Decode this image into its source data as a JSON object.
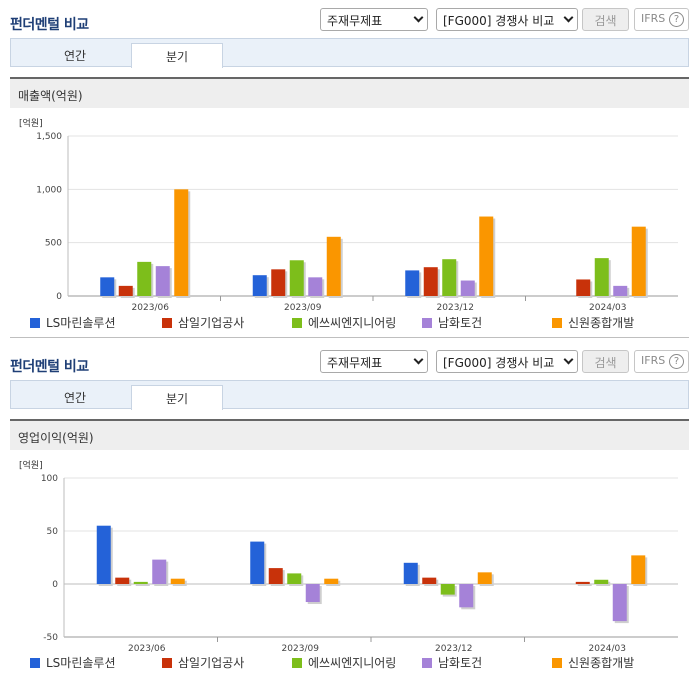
{
  "panels": [
    {
      "title": "펀더멘털 비교",
      "select1": "주재무제표",
      "select2": "[FG000] 경쟁사 비교",
      "search_label": "검색",
      "ifrs_label": "IFRS",
      "help_label": "?",
      "tabs": [
        {
          "label": "연간"
        },
        {
          "label": "분기"
        }
      ],
      "section_title": "매출액(억원)"
    },
    {
      "title": "펀더멘털 비교",
      "select1": "주재무제표",
      "select2": "[FG000] 경쟁사 비교",
      "search_label": "검색",
      "ifrs_label": "IFRS",
      "help_label": "?",
      "tabs": [
        {
          "label": "연간"
        },
        {
          "label": "분기"
        }
      ],
      "section_title": "영업이익(억원)"
    }
  ],
  "legend": [
    {
      "name": "LS마린솔루션",
      "color": "#2462d8"
    },
    {
      "name": "삼일기업공사",
      "color": "#c8320a"
    },
    {
      "name": "에쓰씨엔지니어링",
      "color": "#7dbe1b"
    },
    {
      "name": "남화토건",
      "color": "#a582d8"
    },
    {
      "name": "신원종합개발",
      "color": "#fa9600"
    }
  ],
  "chart_data": [
    {
      "type": "bar",
      "title": "매출액(억원)",
      "unit_label": "[억원]",
      "categories": [
        "2023/06",
        "2023/09",
        "2023/12",
        "2024/03"
      ],
      "yticks": [
        "1,500",
        "1,000",
        "500",
        "0"
      ],
      "ylim": [
        0,
        1500
      ],
      "series": [
        {
          "name": "LS마린솔루션",
          "values": [
            175,
            195,
            240,
            null
          ]
        },
        {
          "name": "삼일기업공사",
          "values": [
            95,
            250,
            270,
            155
          ]
        },
        {
          "name": "에쓰씨엔지니어링",
          "values": [
            320,
            335,
            345,
            355
          ]
        },
        {
          "name": "남화토건",
          "values": [
            280,
            175,
            145,
            95
          ]
        },
        {
          "name": "신원종합개발",
          "values": [
            1000,
            555,
            745,
            650
          ]
        }
      ],
      "grid": true,
      "legend_position": "bottom"
    },
    {
      "type": "bar",
      "title": "영업이익(억원)",
      "unit_label": "[억원]",
      "categories": [
        "2023/06",
        "2023/09",
        "2023/12",
        "2024/03"
      ],
      "yticks": [
        "100",
        "50",
        "0",
        "-50"
      ],
      "ylim": [
        -50,
        100
      ],
      "series": [
        {
          "name": "LS마린솔루션",
          "values": [
            55,
            40,
            20,
            null
          ]
        },
        {
          "name": "삼일기업공사",
          "values": [
            6,
            15,
            6,
            2
          ]
        },
        {
          "name": "에쓰씨엔지니어링",
          "values": [
            2,
            10,
            -10,
            4
          ]
        },
        {
          "name": "남화토건",
          "values": [
            23,
            -17,
            -22,
            -35
          ]
        },
        {
          "name": "신원종합개발",
          "values": [
            5,
            5,
            11,
            27
          ]
        }
      ],
      "grid": true,
      "legend_position": "bottom"
    }
  ]
}
